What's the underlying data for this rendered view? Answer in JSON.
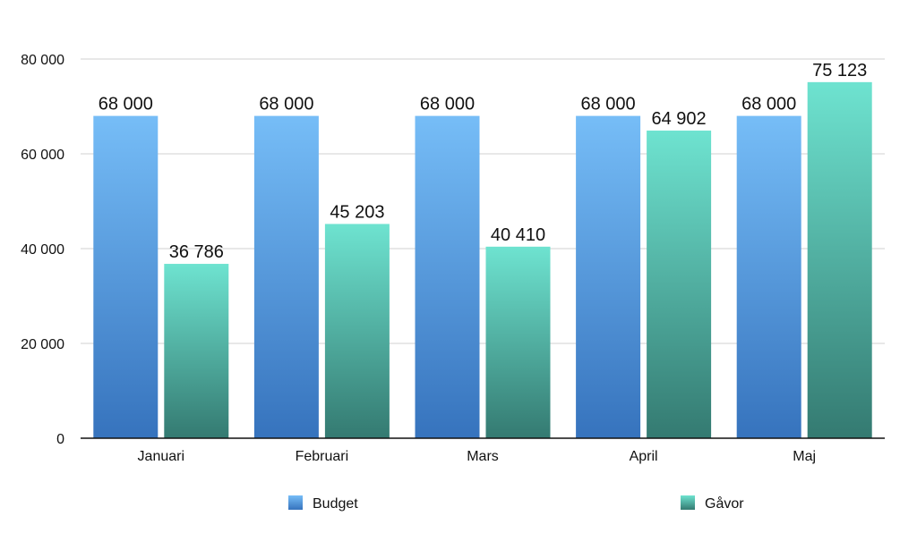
{
  "chart_data": {
    "type": "bar",
    "categories": [
      "Januari",
      "Februari",
      "Mars",
      "April",
      "Maj"
    ],
    "series": [
      {
        "name": "Budget",
        "values": [
          68000,
          68000,
          68000,
          68000,
          68000
        ],
        "labels": [
          "68 000",
          "68 000",
          "68 000",
          "68 000",
          "68 000"
        ],
        "color_top": "#76bdf7",
        "color_bottom": "#3673bd"
      },
      {
        "name": "Gåvor",
        "values": [
          36786,
          45203,
          40410,
          64902,
          75123
        ],
        "labels": [
          "36 786",
          "45 203",
          "40 410",
          "64 902",
          "75 123"
        ],
        "color_top": "#6ee3d0",
        "color_bottom": "#347a71"
      }
    ],
    "yticks": [
      0,
      20000,
      40000,
      60000,
      80000
    ],
    "ytick_labels": [
      "0",
      "20 000",
      "40 000",
      "60 000",
      "80 000"
    ],
    "ylim": [
      0,
      80000
    ],
    "grid": true,
    "legend_position": "bottom"
  }
}
